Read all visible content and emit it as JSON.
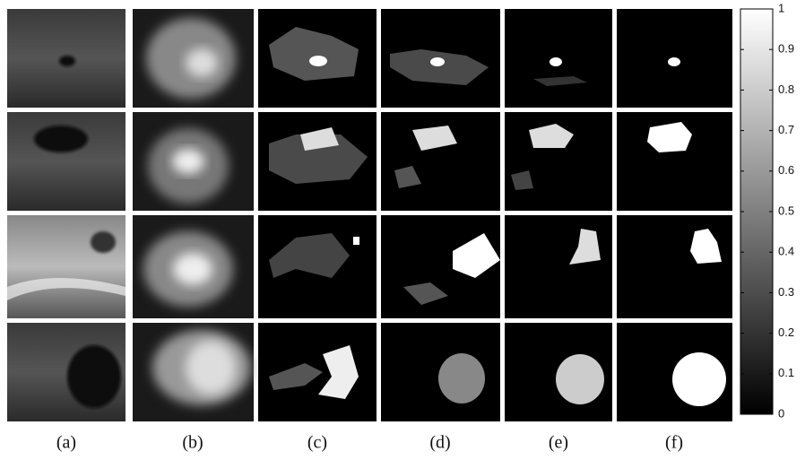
{
  "figure": {
    "panel_labels": [
      "(a)",
      "(b)",
      "(c)",
      "(d)",
      "(e)",
      "(f)"
    ],
    "colorbar": {
      "range": [
        0,
        1
      ],
      "ticks": [
        0,
        0.1,
        0.2,
        0.3,
        0.4,
        0.5,
        0.6,
        0.7,
        0.8,
        0.9,
        1
      ]
    }
  }
}
